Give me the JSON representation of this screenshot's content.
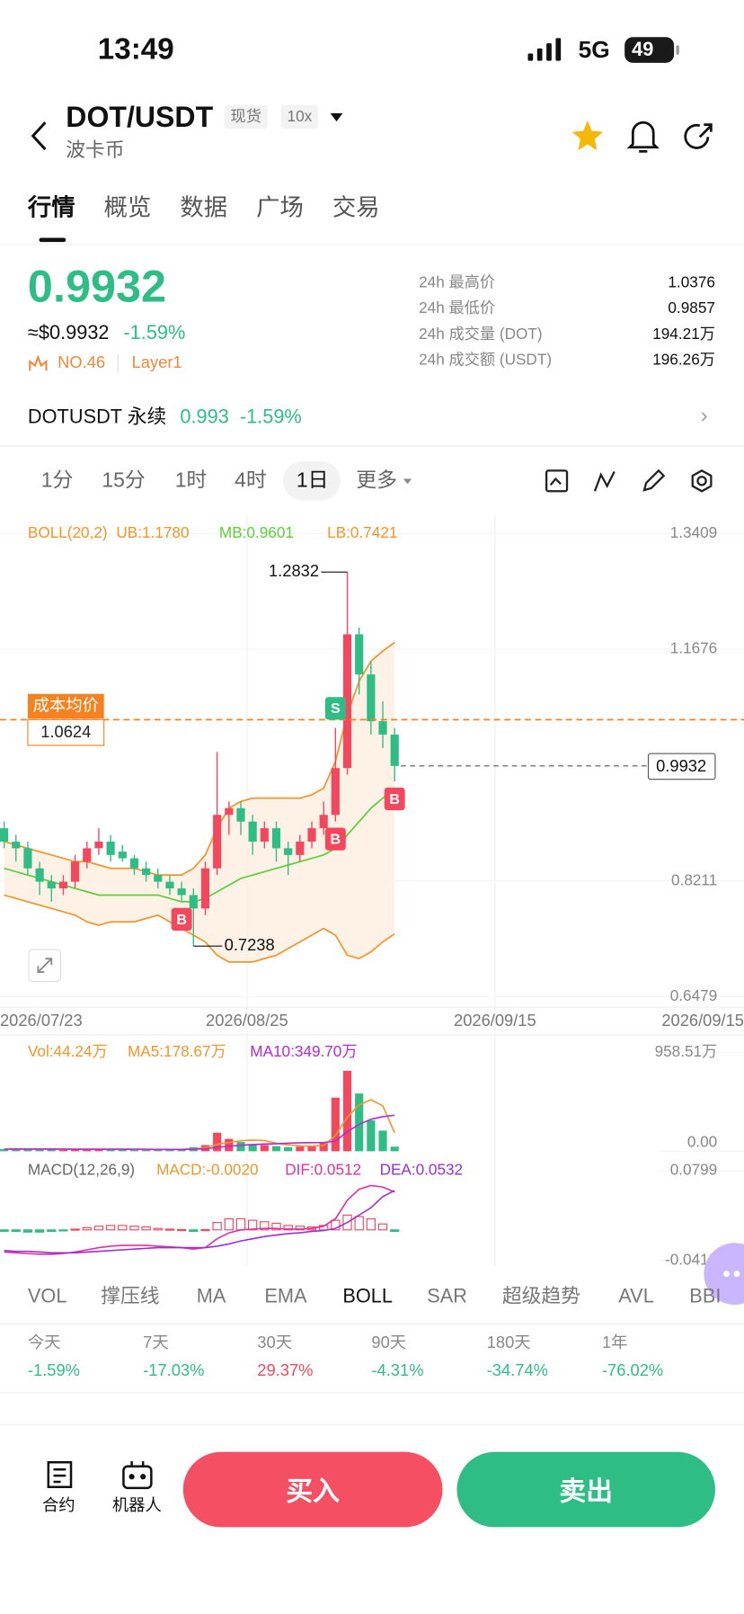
{
  "status_bar": {
    "time": "13:49",
    "network": "5G",
    "battery": "49"
  },
  "header": {
    "pair": "DOT/USDT",
    "name": "波卡币",
    "badges": [
      "现货",
      "10x"
    ]
  },
  "tabs": {
    "items": [
      "行情",
      "概览",
      "数据",
      "广场",
      "交易"
    ],
    "active": 0
  },
  "ticker": {
    "price": "0.9932",
    "usd": "≈$0.9932",
    "change": "-1.59%",
    "rank": "NO.46",
    "sector": "Layer1",
    "stats": [
      {
        "label": "24h 最高价",
        "value": "1.0376"
      },
      {
        "label": "24h 最低价",
        "value": "0.9857"
      },
      {
        "label": "24h 成交量 (DOT)",
        "value": "194.21万"
      },
      {
        "label": "24h 成交额 (USDT)",
        "value": "196.26万"
      }
    ]
  },
  "perpetual": {
    "name": "DOTUSDT 永续",
    "price": "0.993",
    "change": "-1.59%"
  },
  "intervals": {
    "items": [
      "1分",
      "15分",
      "1时",
      "4时",
      "1日",
      "更多"
    ],
    "active": 4
  },
  "chart": {
    "boll_title": "BOLL(20,2)",
    "ub": "UB:1.1780",
    "mb": "MB:0.9601",
    "lb": "LB:0.7421",
    "ylim": [
      0.6479,
      1.3409
    ],
    "yticks": [
      1.3409,
      1.1676,
      0.8211,
      0.6479
    ],
    "dates": [
      "2026/07/23",
      "2026/08/25",
      "2026/09/15",
      "2026/09/15"
    ],
    "cost_label": "成本均价",
    "cost": 1.0624,
    "last": 0.9932,
    "high": 1.2832,
    "low": 0.7238,
    "up_color": "#f2475c",
    "down_color": "#2ebd85",
    "signals": [
      {
        "candle": 15,
        "label": "B",
        "position": "below",
        "color": "#f2475c"
      },
      {
        "candle": 28,
        "label": "S",
        "position": "above",
        "color": "#2ebd85"
      },
      {
        "candle": 28,
        "label": "B",
        "position": "below",
        "color": "#f2475c"
      },
      {
        "candle": 33,
        "label": "B",
        "position": "below",
        "color": "#f2475c"
      }
    ],
    "candles": [
      [
        0.9,
        0.91,
        0.87,
        0.88
      ],
      [
        0.88,
        0.89,
        0.85,
        0.87
      ],
      [
        0.87,
        0.88,
        0.83,
        0.84
      ],
      [
        0.84,
        0.85,
        0.8,
        0.82
      ],
      [
        0.82,
        0.83,
        0.79,
        0.81
      ],
      [
        0.81,
        0.83,
        0.8,
        0.82
      ],
      [
        0.82,
        0.86,
        0.81,
        0.85
      ],
      [
        0.85,
        0.88,
        0.84,
        0.87
      ],
      [
        0.87,
        0.9,
        0.86,
        0.88
      ],
      [
        0.88,
        0.89,
        0.85,
        0.86
      ],
      [
        0.865,
        0.875,
        0.85,
        0.855
      ],
      [
        0.855,
        0.86,
        0.83,
        0.84
      ],
      [
        0.84,
        0.85,
        0.82,
        0.83
      ],
      [
        0.83,
        0.84,
        0.81,
        0.82
      ],
      [
        0.82,
        0.83,
        0.8,
        0.81
      ],
      [
        0.81,
        0.82,
        0.79,
        0.8
      ],
      [
        0.8,
        0.81,
        0.7238,
        0.78
      ],
      [
        0.78,
        0.85,
        0.77,
        0.84
      ],
      [
        0.84,
        1.0139,
        0.83,
        0.92
      ],
      [
        0.92,
        0.94,
        0.89,
        0.93
      ],
      [
        0.93,
        0.94,
        0.89,
        0.91
      ],
      [
        0.91,
        0.92,
        0.86,
        0.88
      ],
      [
        0.88,
        0.91,
        0.87,
        0.9
      ],
      [
        0.9,
        0.91,
        0.85,
        0.87
      ],
      [
        0.87,
        0.88,
        0.83,
        0.86
      ],
      [
        0.86,
        0.89,
        0.85,
        0.88
      ],
      [
        0.88,
        0.91,
        0.87,
        0.9
      ],
      [
        0.9,
        0.94,
        0.89,
        0.92
      ],
      [
        0.92,
        1.05,
        0.91,
        0.99
      ],
      [
        0.99,
        1.2832,
        0.98,
        1.19
      ],
      [
        1.19,
        1.2,
        1.1,
        1.13
      ],
      [
        1.13,
        1.15,
        1.04,
        1.06
      ],
      [
        1.06,
        1.09,
        1.02,
        1.04
      ],
      [
        1.04,
        1.05,
        0.97,
        0.9932
      ]
    ],
    "boll": {
      "upper": [
        0.88,
        0.875,
        0.87,
        0.865,
        0.86,
        0.855,
        0.85,
        0.85,
        0.845,
        0.84,
        0.84,
        0.84,
        0.835,
        0.83,
        0.83,
        0.83,
        0.84,
        0.86,
        0.9,
        0.93,
        0.94,
        0.945,
        0.945,
        0.945,
        0.945,
        0.945,
        0.95,
        0.96,
        1.0,
        1.07,
        1.12,
        1.15,
        1.165,
        1.178
      ],
      "mid": [
        0.84,
        0.835,
        0.83,
        0.825,
        0.82,
        0.815,
        0.81,
        0.805,
        0.8,
        0.8,
        0.8,
        0.8,
        0.8,
        0.8,
        0.795,
        0.79,
        0.79,
        0.795,
        0.805,
        0.815,
        0.825,
        0.83,
        0.835,
        0.84,
        0.845,
        0.85,
        0.855,
        0.86,
        0.87,
        0.89,
        0.91,
        0.93,
        0.945,
        0.9601
      ],
      "lower": [
        0.8,
        0.795,
        0.79,
        0.785,
        0.78,
        0.775,
        0.77,
        0.76,
        0.755,
        0.76,
        0.76,
        0.76,
        0.765,
        0.77,
        0.76,
        0.75,
        0.74,
        0.73,
        0.71,
        0.7,
        0.7,
        0.7,
        0.705,
        0.71,
        0.72,
        0.73,
        0.74,
        0.75,
        0.74,
        0.71,
        0.705,
        0.715,
        0.73,
        0.7421
      ]
    }
  },
  "volume": {
    "vol": "Vol:44.24万",
    "ma5_label": "MA5:178.67万",
    "ma10_label": "MA10:349.70万",
    "ylim": [
      0,
      958.51
    ],
    "yticks": [
      {
        "value": 958.51,
        "label": "958.51万"
      },
      {
        "value": 0,
        "label": "0.00"
      }
    ],
    "values": [
      20,
      25,
      18,
      22,
      20,
      15,
      18,
      20,
      22,
      18,
      15,
      16,
      14,
      18,
      20,
      25,
      40,
      60,
      180,
      120,
      90,
      70,
      60,
      50,
      40,
      45,
      55,
      90,
      520,
      780,
      560,
      300,
      200,
      44.24
    ],
    "ma5": [
      20,
      22,
      21,
      21,
      21,
      20,
      19,
      19,
      19,
      19,
      19,
      18,
      17,
      16,
      17,
      18,
      23,
      33,
      68,
      85,
      102,
      108,
      104,
      78,
      62,
      53,
      50,
      56,
      152,
      330,
      450,
      500,
      440,
      178.67
    ],
    "ma10": [
      20,
      21,
      21,
      21,
      21,
      21,
      20,
      20,
      20,
      20,
      20,
      20,
      19,
      18,
      18,
      18,
      20,
      24,
      38,
      48,
      58,
      65,
      70,
      72,
      78,
      82,
      83,
      85,
      98,
      190,
      260,
      310,
      335,
      349.7
    ]
  },
  "macd": {
    "title": "MACD(12,26,9)",
    "macd_label": "MACD:-0.0020",
    "dif_label": "DIF:0.0512",
    "dea_label": "DEA:0.0532",
    "ylim": [
      -0.0413,
      0.0799
    ],
    "yticks": [
      0.0799,
      -0.0413
    ],
    "hist": [
      -0.002,
      -0.002,
      -0.003,
      -0.003,
      -0.002,
      -0.001,
      0.001,
      0.003,
      0.005,
      0.006,
      0.006,
      0.005,
      0.004,
      0.002,
      0.001,
      0.0005,
      -0.002,
      0.0005,
      0.01,
      0.015,
      0.015,
      0.013,
      0.011,
      0.009,
      0.006,
      0.005,
      0.004,
      0.006,
      0.013,
      0.02,
      0.018,
      0.015,
      0.008,
      -0.002
    ],
    "dif": [
      -0.03,
      -0.031,
      -0.032,
      -0.033,
      -0.033,
      -0.032,
      -0.03,
      -0.027,
      -0.024,
      -0.022,
      -0.021,
      -0.021,
      -0.021,
      -0.022,
      -0.023,
      -0.024,
      -0.026,
      -0.024,
      -0.012,
      -0.004,
      0.0,
      0.001,
      0.002,
      0.002,
      0.001,
      0.001,
      0.002,
      0.005,
      0.015,
      0.04,
      0.055,
      0.06,
      0.058,
      0.0512
    ],
    "dea": [
      -0.028,
      -0.029,
      -0.029,
      -0.03,
      -0.031,
      -0.031,
      -0.031,
      -0.03,
      -0.029,
      -0.028,
      -0.027,
      -0.026,
      -0.025,
      -0.024,
      -0.024,
      -0.024,
      -0.024,
      -0.024,
      -0.022,
      -0.019,
      -0.015,
      -0.012,
      -0.009,
      -0.007,
      -0.005,
      -0.004,
      -0.002,
      -0.001,
      0.002,
      0.01,
      0.02,
      0.03,
      0.045,
      0.0532
    ]
  },
  "indicators": {
    "items": [
      "VOL",
      "撑压线",
      "MA",
      "EMA",
      "BOLL",
      "SAR",
      "超级趋势",
      "AVL",
      "BBI"
    ],
    "active": 4
  },
  "performance": [
    {
      "period": "今天",
      "change": "-1.59%"
    },
    {
      "period": "7天",
      "change": "-17.03%"
    },
    {
      "period": "30天",
      "change": "29.37%"
    },
    {
      "period": "90天",
      "change": "-4.31%"
    },
    {
      "period": "180天",
      "change": "-34.74%"
    },
    {
      "period": "1年",
      "change": "-76.02%"
    }
  ],
  "actions": {
    "contract": "合约",
    "robot": "机器人",
    "buy": "买入",
    "sell": "卖出"
  }
}
